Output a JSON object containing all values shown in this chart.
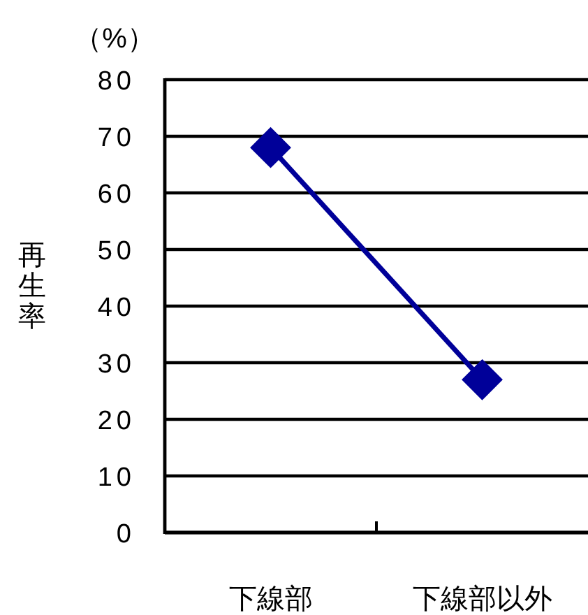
{
  "chart_data": {
    "type": "line",
    "ylabel": "再生率",
    "annotations": [
      "（%）"
    ],
    "categories": [
      "下線部",
      "下線部以外"
    ],
    "values": [
      68,
      27
    ],
    "color": "#000099",
    "ylim": [
      0,
      80
    ],
    "yticks": [
      0,
      10,
      20,
      30,
      40,
      50,
      60,
      70,
      80
    ],
    "grid": "y",
    "marker": "diamond",
    "line_style": "solid"
  }
}
